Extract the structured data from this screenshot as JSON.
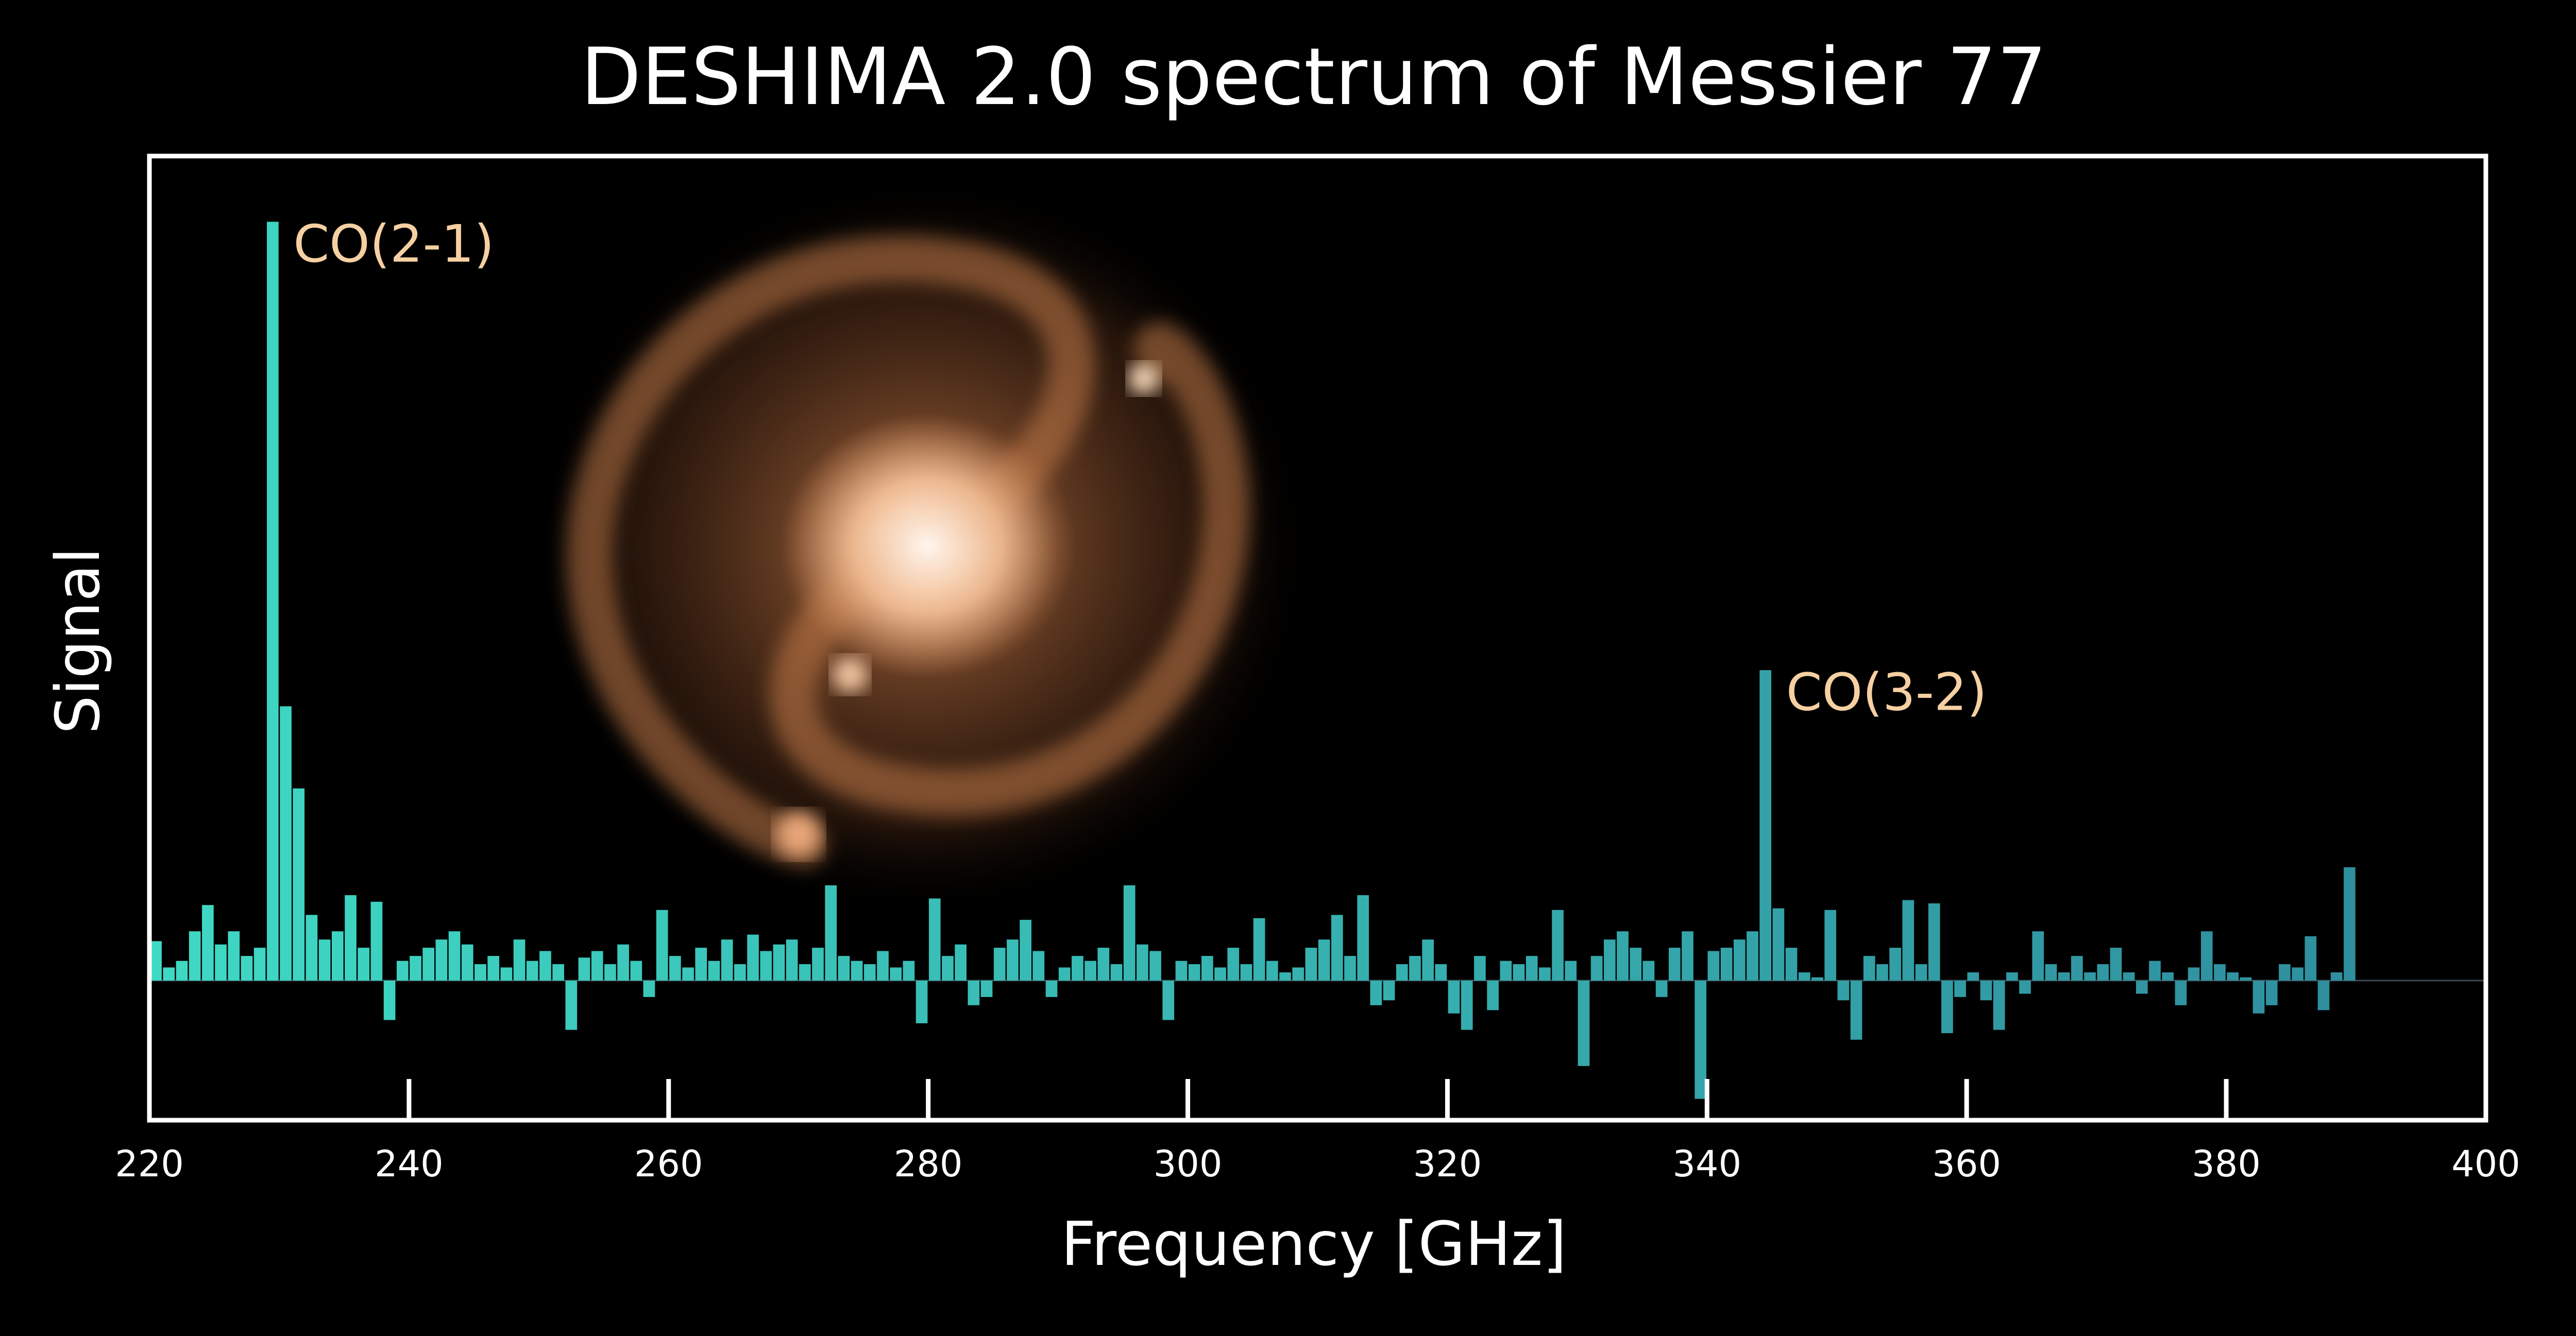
{
  "chart_data": {
    "type": "bar",
    "title": "DESHIMA 2.0 spectrum of Messier 77",
    "x_label": "Frequency [GHz]",
    "y_label": "Signal",
    "x": [
      220.5,
      221.5,
      222.5,
      223.5,
      224.5,
      225.5,
      226.5,
      227.5,
      228.5,
      229.5,
      230.5,
      231.5,
      232.5,
      233.5,
      234.5,
      235.5,
      236.5,
      237.5,
      238.5,
      239.5,
      240.5,
      241.5,
      242.5,
      243.5,
      244.5,
      245.5,
      246.5,
      247.5,
      248.5,
      249.5,
      250.5,
      251.5,
      252.5,
      253.5,
      254.5,
      255.5,
      256.5,
      257.5,
      258.5,
      259.5,
      260.5,
      261.5,
      262.5,
      263.5,
      264.5,
      265.5,
      266.5,
      267.5,
      268.5,
      269.5,
      270.5,
      271.5,
      272.5,
      273.5,
      274.5,
      275.5,
      276.5,
      277.5,
      278.5,
      279.5,
      280.5,
      281.5,
      282.5,
      283.5,
      284.5,
      285.5,
      286.5,
      287.5,
      288.5,
      289.5,
      290.5,
      291.5,
      292.5,
      293.5,
      294.5,
      295.5,
      296.5,
      297.5,
      298.5,
      299.5,
      300.5,
      301.5,
      302.5,
      303.5,
      304.5,
      305.5,
      306.5,
      307.5,
      308.5,
      309.5,
      310.5,
      311.5,
      312.5,
      313.5,
      314.5,
      315.5,
      316.5,
      317.5,
      318.5,
      319.5,
      320.5,
      321.5,
      322.5,
      323.5,
      324.5,
      325.5,
      326.5,
      327.5,
      328.5,
      329.5,
      330.5,
      331.5,
      332.5,
      333.5,
      334.5,
      335.5,
      336.5,
      337.5,
      338.5,
      339.5,
      340.5,
      341.5,
      342.5,
      343.5,
      344.5,
      345.5,
      346.5,
      347.5,
      348.5,
      349.5,
      350.5,
      351.5,
      352.5,
      353.5,
      354.5,
      355.5,
      356.5,
      357.5,
      358.5,
      359.5,
      360.5,
      361.5,
      362.5,
      363.5,
      364.5,
      365.5,
      366.5,
      367.5,
      368.5,
      369.5,
      370.5,
      371.5,
      372.5,
      373.5,
      374.5,
      375.5,
      376.5,
      377.5,
      378.5,
      379.5,
      380.5,
      381.5,
      382.5,
      383.5,
      384.5,
      385.5,
      386.5,
      387.5,
      388.5,
      389.5
    ],
    "values": [
      0.24,
      0.08,
      0.12,
      0.3,
      0.46,
      0.22,
      0.3,
      0.15,
      0.2,
      4.62,
      1.67,
      1.17,
      0.4,
      0.25,
      0.3,
      0.52,
      0.2,
      0.48,
      -0.24,
      0.12,
      0.15,
      0.2,
      0.25,
      0.3,
      0.22,
      0.1,
      0.15,
      0.08,
      0.25,
      0.12,
      0.18,
      0.1,
      -0.3,
      0.14,
      0.18,
      0.1,
      0.22,
      0.12,
      -0.1,
      0.43,
      0.15,
      0.08,
      0.2,
      0.12,
      0.25,
      0.1,
      0.28,
      0.18,
      0.22,
      0.25,
      0.1,
      0.2,
      0.58,
      0.15,
      0.12,
      0.1,
      0.18,
      0.08,
      0.12,
      -0.26,
      0.5,
      0.15,
      0.22,
      -0.15,
      -0.1,
      0.2,
      0.25,
      0.37,
      0.18,
      -0.1,
      0.08,
      0.15,
      0.12,
      0.2,
      0.1,
      0.58,
      0.22,
      0.18,
      -0.24,
      0.12,
      0.1,
      0.15,
      0.08,
      0.2,
      0.1,
      0.38,
      0.12,
      0.05,
      0.08,
      0.2,
      0.25,
      0.4,
      0.15,
      0.52,
      -0.15,
      -0.12,
      0.1,
      0.15,
      0.25,
      0.1,
      -0.2,
      -0.3,
      0.15,
      -0.18,
      0.12,
      0.1,
      0.15,
      0.08,
      0.43,
      0.12,
      -0.52,
      0.15,
      0.25,
      0.3,
      0.2,
      0.12,
      -0.1,
      0.2,
      0.3,
      -0.72,
      0.18,
      0.2,
      0.25,
      0.3,
      1.89,
      0.44,
      0.2,
      0.05,
      0.02,
      0.43,
      -0.12,
      -0.36,
      0.15,
      0.1,
      0.2,
      0.49,
      0.1,
      0.47,
      -0.32,
      -0.1,
      0.05,
      -0.12,
      -0.3,
      0.05,
      -0.08,
      0.3,
      0.1,
      0.05,
      0.15,
      0.05,
      0.1,
      0.2,
      0.05,
      -0.08,
      0.12,
      0.05,
      -0.15,
      0.08,
      0.3,
      0.1,
      0.05,
      0.02,
      -0.2,
      -0.15,
      0.1,
      0.08,
      0.27,
      -0.18,
      0.05,
      0.69
    ],
    "colors": [
      "#3fd9c4",
      "#2e8a9c"
    ],
    "annotations": [
      {
        "text": "CO(2-1)",
        "x": 229.5,
        "y": 4.62
      },
      {
        "text": "CO(3-2)",
        "x": 344.5,
        "y": 1.89
      }
    ],
    "annotation_color": "#f6d0a2",
    "xlim": [
      220,
      400
    ],
    "xticks": [
      220,
      240,
      260,
      280,
      300,
      320,
      340,
      360,
      380,
      400
    ],
    "ylim": [
      -0.85,
      5.02
    ]
  }
}
